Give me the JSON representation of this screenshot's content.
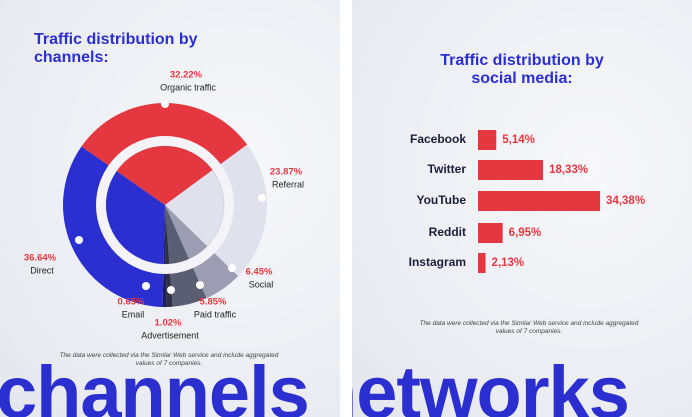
{
  "chart_data": [
    {
      "type": "pie",
      "title": "Traffic distribution by channels:",
      "categories": [
        "Organic traffic",
        "Referral",
        "Social",
        "Paid traffic",
        "Advertisement",
        "Email",
        "Direct"
      ],
      "values": [
        32.22,
        23.87,
        6.45,
        5.85,
        1.02,
        0.65,
        36.64
      ],
      "value_labels": [
        "32.22%",
        "23.87%",
        "6.45%",
        "5.85%",
        "1.02%",
        "0.65%",
        "36.64%"
      ],
      "colors": [
        "#e5373f",
        "#e1e1ee",
        "#9c9db3",
        "#5b5d72",
        "#2f3046",
        "#1b1e60",
        "#2b2fd0"
      ],
      "note": "The data were collected via the Similar Web service and include aggregated values of 7 companies.",
      "banner": "channels"
    },
    {
      "type": "bar",
      "orientation": "horizontal",
      "title": "Traffic distribution by social media:",
      "categories": [
        "Facebook",
        "Twitter",
        "YouTube",
        "Reddit",
        "Instagram"
      ],
      "values": [
        5.14,
        18.33,
        34.38,
        6.95,
        2.13
      ],
      "value_labels": [
        "5,14%",
        "18,33%",
        "34,38%",
        "6,95%",
        "2,13%"
      ],
      "color": "#e5373f",
      "note": "The data were collected via the Similar Web service and include aggregated values of 7 companies.",
      "banner": "networks"
    }
  ]
}
